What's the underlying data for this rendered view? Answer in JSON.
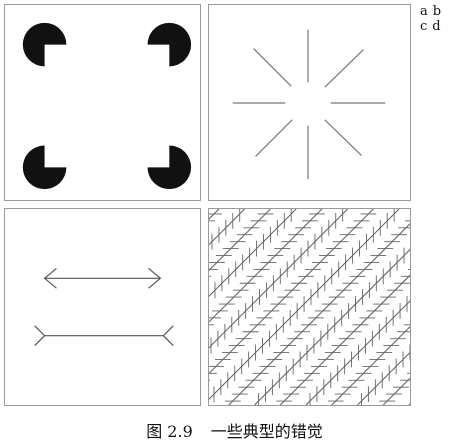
{
  "panel_labels": {
    "a": "a",
    "b": "b",
    "c": "c",
    "d": "d"
  },
  "caption": {
    "number": "图 2.9",
    "text": "一些典型的错觉"
  }
}
